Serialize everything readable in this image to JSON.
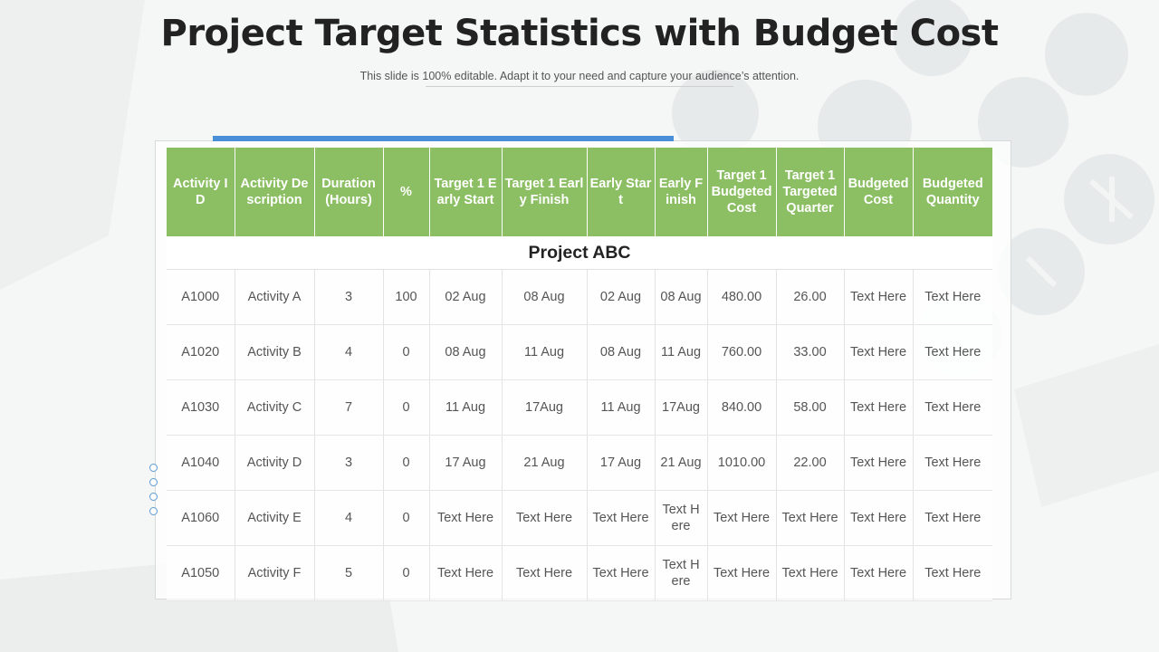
{
  "title": "Project Target Statistics with Budget Cost",
  "subtitle": "This slide is 100% editable. Adapt it to your need and capture your audience’s attention.",
  "colors": {
    "header_green": "#8cbf64",
    "accent_blue": "#4a90d9",
    "title": "#222222"
  },
  "table": {
    "headers": [
      "Activity ID",
      "Activity Description",
      "Duration (Hours)",
      "%",
      "Target 1 Early Start",
      "Target 1 Early Finish",
      "Early Start",
      "Early Finish",
      "Target 1 Budgeted Cost",
      "Target 1 Targeted Quarter",
      "Budgeted Cost",
      "Budgeted Quantity"
    ],
    "group_label": "Project ABC",
    "rows": [
      [
        "A1000",
        "Activity A",
        "3",
        "100",
        "02 Aug",
        "08 Aug",
        "02 Aug",
        "08 Aug",
        "480.00",
        "26.00",
        "Text Here",
        "Text Here"
      ],
      [
        "A1020",
        "Activity B",
        "4",
        "0",
        "08 Aug",
        "11 Aug",
        "08 Aug",
        "11 Aug",
        "760.00",
        "33.00",
        "Text Here",
        "Text Here"
      ],
      [
        "A1030",
        "Activity C",
        "7",
        "0",
        "11 Aug",
        "17Aug",
        "11 Aug",
        "17Aug",
        "840.00",
        "58.00",
        "Text Here",
        "Text Here"
      ],
      [
        "A1040",
        "Activity D",
        "3",
        "0",
        "17 Aug",
        "21 Aug",
        "17 Aug",
        "21 Aug",
        "1010.00",
        "22.00",
        "Text Here",
        "Text Here"
      ],
      [
        "A1060",
        "Activity E",
        "4",
        "0",
        "Text Here",
        "Text Here",
        "Text Here",
        "Text Here",
        "Text Here",
        "Text Here",
        "Text Here",
        "Text Here"
      ],
      [
        "A1050",
        "Activity F",
        "5",
        "0",
        "Text Here",
        "Text Here",
        "Text Here",
        "Text Here",
        "Text Here",
        "Text Here",
        "Text Here",
        "Text Here"
      ]
    ]
  }
}
